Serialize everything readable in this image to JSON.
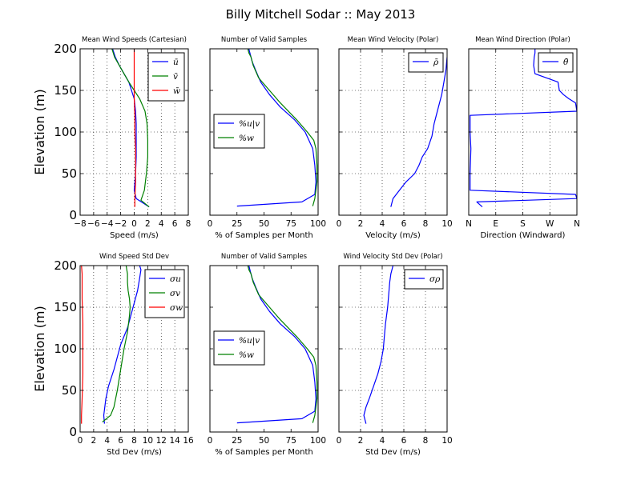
{
  "figure": {
    "suptitle": "Billy Mitchell Sodar :: May 2013",
    "ylabel": "Elevation (m)"
  },
  "chart_data": [
    {
      "type": "line",
      "title": "Mean Wind Speeds (Cartesian)",
      "xlabel": "Speed (m/s)",
      "ylabel": "Elevation (m)",
      "xlim": [
        -8,
        8
      ],
      "ylim": [
        0,
        200
      ],
      "xticks": [
        -8,
        -6,
        -4,
        -2,
        0,
        2,
        4,
        6,
        8
      ],
      "xticklabels": [
        "−8",
        "−6",
        "−4",
        "−2",
        "0",
        "2",
        "4",
        "6",
        "8"
      ],
      "yticks": [
        0,
        50,
        100,
        150,
        200
      ],
      "grid": true,
      "legend": "top-right",
      "series": [
        {
          "name": "ū",
          "color": "#0000ff",
          "x": [
            2.2,
            0.3,
            0.0,
            0.2,
            0.3,
            0.3,
            0.3,
            0.2,
            0.0,
            -0.4,
            -0.8,
            -1.5,
            -2.2,
            -2.8,
            -3.0,
            -3.2
          ],
          "y": [
            10,
            20,
            30,
            50,
            70,
            90,
            110,
            125,
            140,
            150,
            160,
            170,
            180,
            190,
            195,
            200
          ]
        },
        {
          "name": "v̄",
          "color": "#008000",
          "x": [
            2.2,
            1.0,
            1.5,
            1.8,
            2.0,
            2.0,
            1.9,
            1.6,
            0.8,
            0.0,
            -0.8,
            -1.5,
            -2.2,
            -2.9,
            -3.3
          ],
          "y": [
            10,
            18,
            30,
            50,
            70,
            90,
            110,
            125,
            140,
            150,
            160,
            170,
            180,
            190,
            200
          ]
        },
        {
          "name": "w̄",
          "color": "#ff0000",
          "x": [
            0.1,
            0.1,
            0.2,
            0.2,
            0.2,
            0.1,
            0.1,
            0.0,
            0.0,
            0.0,
            0.0,
            0.0
          ],
          "y": [
            10,
            20,
            40,
            60,
            80,
            100,
            120,
            140,
            160,
            180,
            195,
            200
          ]
        }
      ]
    },
    {
      "type": "line",
      "title": "Number of Valid Samples",
      "xlabel": "% of Samples per Month",
      "xlim": [
        0,
        100
      ],
      "ylim": [
        0,
        200
      ],
      "xticks": [
        0,
        25,
        50,
        75,
        100
      ],
      "xticklabels": [
        "0",
        "25",
        "50",
        "75",
        "100"
      ],
      "yticks": [
        0,
        50,
        100,
        150,
        200
      ],
      "grid": false,
      "legend": "center-left",
      "series": [
        {
          "name": "%u|v",
          "color": "#0000ff",
          "x": [
            25,
            85,
            97,
            98,
            97,
            95,
            88,
            78,
            65,
            55,
            47,
            42,
            39,
            37,
            36
          ],
          "y": [
            11,
            16,
            25,
            40,
            60,
            80,
            100,
            115,
            130,
            145,
            160,
            175,
            185,
            195,
            200
          ]
        },
        {
          "name": "%w",
          "color": "#008000",
          "x": [
            95,
            97,
            99,
            99,
            98,
            96,
            90,
            80,
            65,
            55,
            45,
            40,
            38,
            36,
            35
          ],
          "y": [
            11,
            20,
            40,
            60,
            80,
            90,
            100,
            115,
            135,
            150,
            165,
            180,
            190,
            195,
            200
          ]
        }
      ]
    },
    {
      "type": "line",
      "title": "Mean Wind Velocity (Polar)",
      "xlabel": "Velocity (m/s)",
      "xlim": [
        0,
        10
      ],
      "ylim": [
        0,
        200
      ],
      "xticks": [
        0,
        2,
        4,
        6,
        8,
        10
      ],
      "xticklabels": [
        "0",
        "2",
        "4",
        "6",
        "8",
        "10"
      ],
      "yticks": [
        0,
        50,
        100,
        150,
        200
      ],
      "grid": true,
      "legend": "top-right",
      "series": [
        {
          "name": "ρ̄",
          "color": "#0000ff",
          "x": [
            4.8,
            5.0,
            5.6,
            6.2,
            7.0,
            7.4,
            7.7,
            8.2,
            8.6,
            8.8,
            9.0,
            9.2,
            9.5,
            9.7,
            9.9,
            10.0
          ],
          "y": [
            10,
            20,
            30,
            40,
            50,
            60,
            70,
            80,
            95,
            110,
            120,
            130,
            145,
            160,
            175,
            190
          ]
        }
      ]
    },
    {
      "type": "line",
      "title": "Mean Wind Direction (Polar)",
      "xlabel": "Direction (Windward)",
      "xlim": [
        0,
        4
      ],
      "ylim": [
        0,
        200
      ],
      "xticks": [
        0,
        1,
        2,
        3,
        4
      ],
      "xticklabels": [
        "N",
        "E",
        "S",
        "W",
        "N"
      ],
      "yticks": [
        0,
        50,
        100,
        150,
        200
      ],
      "grid": true,
      "legend": "top-right",
      "series": [
        {
          "name": "θ̄",
          "color": "#0000ff",
          "x": [
            0.5,
            0.3,
            4.0,
            3.95,
            0.05,
            0.05,
            0.08,
            0.05,
            0.05,
            4.0,
            3.95,
            3.7,
            3.5,
            3.35,
            3.3,
            2.45,
            2.4,
            2.42,
            2.45,
            2.45
          ],
          "y": [
            10,
            16,
            20,
            25,
            30,
            50,
            80,
            100,
            120,
            125,
            135,
            140,
            145,
            150,
            160,
            170,
            180,
            190,
            195,
            200
          ]
        }
      ]
    },
    {
      "type": "line",
      "title": "Wind Speed Std Dev",
      "xlabel": "Std Dev (m/s)",
      "ylabel": "Elevation (m)",
      "xlim": [
        0,
        16
      ],
      "ylim": [
        0,
        200
      ],
      "xticks": [
        0,
        2,
        4,
        6,
        8,
        10,
        12,
        14,
        16
      ],
      "xticklabels": [
        "0",
        "2",
        "4",
        "6",
        "8",
        "10",
        "12",
        "14",
        "16"
      ],
      "yticks": [
        0,
        50,
        100,
        150,
        200
      ],
      "grid": true,
      "legend": "top-right",
      "series": [
        {
          "name": "σu",
          "color": "#0000ff",
          "x": [
            3.6,
            3.5,
            3.8,
            4.2,
            5.0,
            5.5,
            6.0,
            6.5,
            7.0,
            7.5,
            8.0,
            8.5,
            8.8,
            9.0,
            8.8
          ],
          "y": [
            10,
            20,
            40,
            55,
            75,
            90,
            105,
            115,
            125,
            140,
            155,
            170,
            185,
            195,
            200
          ]
        },
        {
          "name": "σv",
          "color": "#008000",
          "x": [
            3.3,
            4.5,
            5.0,
            5.5,
            6.0,
            6.5,
            7.0,
            7.3,
            7.4,
            7.3,
            7.1,
            7.0,
            7.0,
            6.8
          ],
          "y": [
            12,
            20,
            30,
            50,
            75,
            100,
            120,
            140,
            150,
            160,
            170,
            180,
            190,
            200
          ]
        },
        {
          "name": "σw",
          "color": "#ff0000",
          "x": [
            0.2,
            0.2,
            0.3,
            0.4,
            0.4,
            0.4,
            0.3,
            0.3,
            0.2
          ],
          "y": [
            10,
            20,
            40,
            70,
            100,
            130,
            160,
            190,
            200
          ]
        }
      ]
    },
    {
      "type": "line",
      "title": "Number of Valid Samples",
      "xlabel": "% of Samples per Month",
      "xlim": [
        0,
        100
      ],
      "ylim": [
        0,
        200
      ],
      "xticks": [
        0,
        25,
        50,
        75,
        100
      ],
      "xticklabels": [
        "0",
        "25",
        "50",
        "75",
        "100"
      ],
      "yticks": [
        0,
        50,
        100,
        150,
        200
      ],
      "grid": false,
      "legend": "center-left",
      "series": [
        {
          "name": "%u|v",
          "color": "#0000ff",
          "x": [
            25,
            85,
            97,
            98,
            97,
            95,
            88,
            78,
            65,
            55,
            47,
            42,
            39,
            37,
            36
          ],
          "y": [
            11,
            16,
            25,
            40,
            60,
            80,
            100,
            115,
            130,
            145,
            160,
            175,
            185,
            195,
            200
          ]
        },
        {
          "name": "%w",
          "color": "#008000",
          "x": [
            95,
            97,
            99,
            99,
            98,
            96,
            90,
            80,
            65,
            55,
            45,
            40,
            38,
            36,
            35
          ],
          "y": [
            11,
            20,
            40,
            60,
            80,
            90,
            100,
            115,
            135,
            150,
            165,
            180,
            190,
            195,
            200
          ]
        }
      ]
    },
    {
      "type": "line",
      "title": "Wind Velocity Std Dev (Polar)",
      "xlabel": "Std Dev (m/s)",
      "xlim": [
        0,
        10
      ],
      "ylim": [
        0,
        200
      ],
      "xticks": [
        0,
        2,
        4,
        6,
        8,
        10
      ],
      "xticklabels": [
        "0",
        "2",
        "4",
        "6",
        "8",
        "10"
      ],
      "yticks": [
        0,
        50,
        100,
        150,
        200
      ],
      "grid": true,
      "legend": "top-right",
      "series": [
        {
          "name": "σρ",
          "color": "#0000ff",
          "x": [
            2.5,
            2.3,
            2.5,
            2.8,
            3.2,
            3.6,
            3.9,
            4.1,
            4.2,
            4.3,
            4.5,
            4.6,
            4.7,
            4.8,
            5.0
          ],
          "y": [
            10,
            20,
            30,
            40,
            55,
            70,
            85,
            100,
            115,
            130,
            150,
            165,
            180,
            190,
            200
          ]
        }
      ]
    }
  ]
}
